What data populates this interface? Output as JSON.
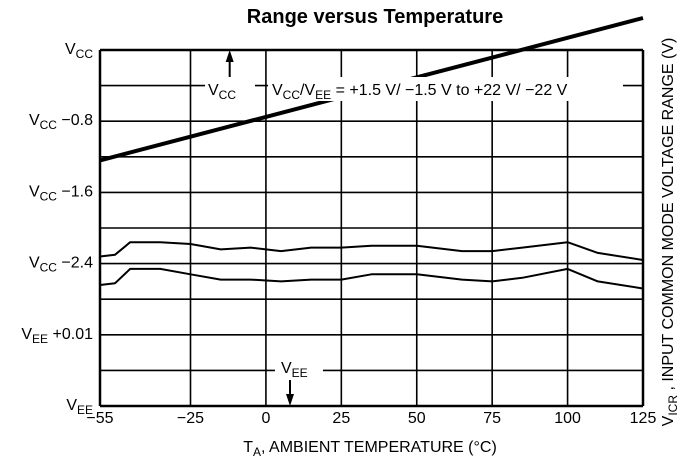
{
  "chart_data": {
    "type": "line",
    "title": "Range versus Temperature",
    "xlabel": {
      "main": "T",
      "sub": "A",
      "rest": ", AMBIENT TEMPERATURE (°C)"
    },
    "ylabel": {
      "main": "V",
      "sub": "ICR",
      "rest": " , INPUT COMMON MODE VOLTAGE RANGE (V)"
    },
    "x_ticks": [
      -55,
      -25,
      0,
      25,
      50,
      75,
      100,
      125
    ],
    "x_tick_labels": [
      "−55",
      "−25",
      "0",
      "25",
      "50",
      "75",
      "100",
      "125"
    ],
    "xlim": [
      -55,
      125
    ],
    "ylim": [
      0,
      8
    ],
    "grid": true,
    "y_tick_labels": [
      {
        "y": 8,
        "main": "V",
        "sub": "CC",
        "rest": ""
      },
      {
        "y": 6,
        "main": "V",
        "sub": "CC",
        "rest": " −0.8"
      },
      {
        "y": 4,
        "main": "V",
        "sub": "CC",
        "rest": " −1.6"
      },
      {
        "y": 2,
        "main": "V",
        "sub": "CC",
        "rest": " −2.4"
      },
      {
        "y": 0,
        "main": "V",
        "sub": "EE",
        "rest": " +0.01"
      },
      {
        "y": -2,
        "main": "V",
        "sub": "EE",
        "rest": ""
      }
    ],
    "series": [
      {
        "x": [
          -55,
          125
        ],
        "y": [
          4.9,
          8.9
        ],
        "style": "thick"
      },
      {
        "x": [
          -55,
          -50,
          -45,
          -35,
          -25,
          -15,
          -5,
          5,
          15,
          25,
          35,
          50,
          65,
          75,
          85,
          100,
          110,
          125
        ],
        "y": [
          2.2,
          2.25,
          2.6,
          2.6,
          2.55,
          2.4,
          2.45,
          2.35,
          2.45,
          2.45,
          2.5,
          2.5,
          2.35,
          2.35,
          2.45,
          2.6,
          2.3,
          2.1
        ],
        "style": "thin"
      },
      {
        "x": [
          -55,
          -50,
          -45,
          -35,
          -25,
          -15,
          -5,
          5,
          15,
          25,
          35,
          50,
          65,
          75,
          85,
          100,
          110,
          125
        ],
        "y": [
          1.4,
          1.45,
          1.85,
          1.85,
          1.7,
          1.55,
          1.55,
          1.5,
          1.55,
          1.55,
          1.7,
          1.7,
          1.55,
          1.5,
          1.6,
          1.85,
          1.5,
          1.3
        ],
        "style": "thin"
      }
    ],
    "annotations": {
      "vcc_arrow": {
        "main": "V",
        "sub": "CC"
      },
      "supply_range": {
        "p1": "V",
        "s1": "CC",
        "p2": "/V",
        "s2": "EE",
        "p3": " =  +1.5 V/ −1.5 V to +22 V/ −22 V"
      },
      "vee_arrow": {
        "main": "V",
        "sub": "EE"
      }
    }
  },
  "colors": {
    "line": "#000000",
    "background": "#ffffff"
  }
}
